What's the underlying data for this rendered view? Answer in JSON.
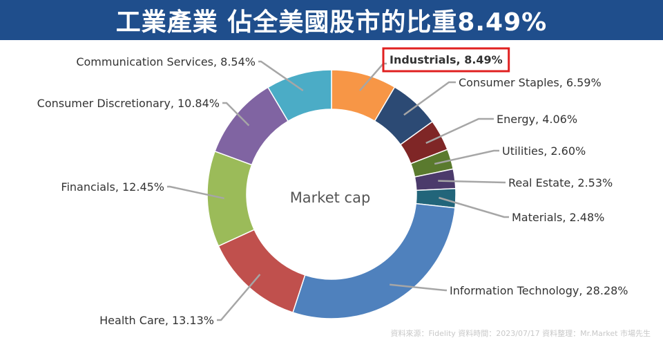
{
  "header": {
    "title": "工業產業 佔全美國股市的比重8.49%"
  },
  "chart_data": {
    "type": "pie",
    "center_label": "Market cap",
    "slices": [
      {
        "name": "Industrials",
        "label": "Industrials, 8.49%",
        "value": 8.49,
        "color": "#f79646",
        "highlight": true
      },
      {
        "name": "Consumer Staples",
        "label": "Consumer Staples, 6.59%",
        "value": 6.59,
        "color": "#2c4a74"
      },
      {
        "name": "Energy",
        "label": "Energy, 4.06%",
        "value": 4.06,
        "color": "#7f2626"
      },
      {
        "name": "Utilities",
        "label": "Utilities, 2.60%",
        "value": 2.6,
        "color": "#5a7a2e"
      },
      {
        "name": "Real Estate",
        "label": "Real Estate, 2.53%",
        "value": 2.53,
        "color": "#4b3a6b"
      },
      {
        "name": "Materials",
        "label": "Materials, 2.48%",
        "value": 2.48,
        "color": "#22657a"
      },
      {
        "name": "Information Technology",
        "label": "Information Technology, 28.28%",
        "value": 28.28,
        "color": "#4f81bd"
      },
      {
        "name": "Health Care",
        "label": "Health Care, 13.13%",
        "value": 13.13,
        "color": "#c0504d"
      },
      {
        "name": "Financials",
        "label": "Financials, 12.45%",
        "value": 12.45,
        "color": "#9bbb59"
      },
      {
        "name": "Consumer Discretionary",
        "label": "Consumer Discretionary, 10.84%",
        "value": 10.84,
        "color": "#8064a2"
      },
      {
        "name": "Communication Services",
        "label": "Communication Services, 8.54%",
        "value": 8.54,
        "color": "#4bacc6"
      }
    ]
  },
  "footer": {
    "source": "資料來源：Fidelity 資料時間：2023/07/17 資料整理：Mr.Market 市場先生"
  },
  "colors": {
    "banner": "#1f4e8c",
    "highlight_box": "#e02020",
    "leader_line": "#a6a6a6"
  }
}
